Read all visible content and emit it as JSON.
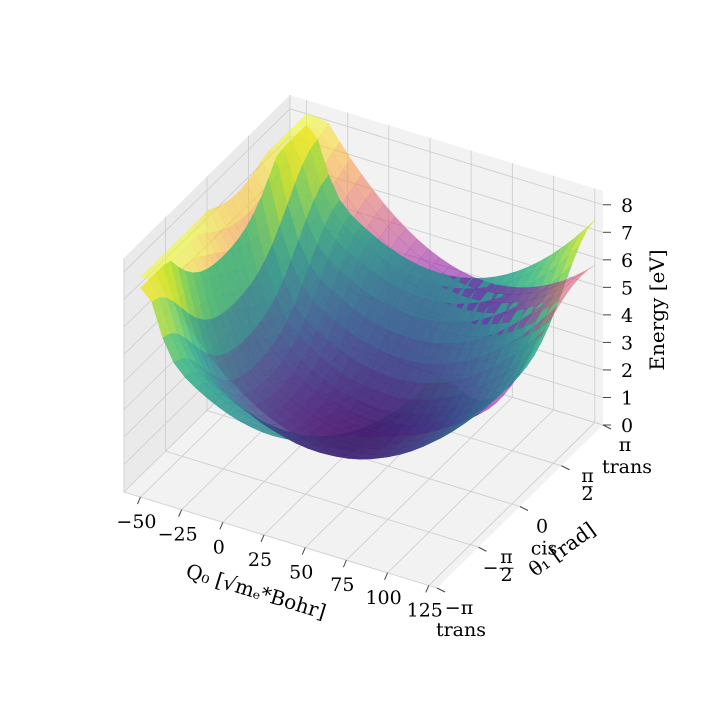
{
  "chart_data": {
    "type": "surface3d",
    "xlabel": "Q₀ [√mₑ*Bohr]",
    "ylabel": "θ₁ [rad]",
    "zlabel": "Energy [eV]",
    "xlim": [
      -60,
      130
    ],
    "ylim": [
      -3.1416,
      3.1416
    ],
    "zlim": [
      0,
      8.5
    ],
    "x_ticks": [
      "−50",
      "−25",
      "0",
      "25",
      "50",
      "75",
      "100",
      "125"
    ],
    "y_ticks": [
      {
        "value": "−π",
        "sub": "trans"
      },
      {
        "value": "−π/2",
        "sub": ""
      },
      {
        "value": "0",
        "sub": "cis"
      },
      {
        "value": "π/2",
        "sub": ""
      },
      {
        "value": "π",
        "sub": "trans"
      }
    ],
    "z_ticks": [
      "0",
      "1",
      "2",
      "3",
      "4",
      "5",
      "6",
      "7",
      "8"
    ],
    "grid": true,
    "series": [
      {
        "colormap": "viridis",
        "x_range": [
          -50,
          125
        ],
        "y_range": [
          -3.1416,
          3.1416
        ],
        "z_range": [
          0.2,
          7.6
        ],
        "min_point": {
          "x": 30,
          "y": 0,
          "z": 0.2
        }
      },
      {
        "colormap": "plasma",
        "x_range": [
          -50,
          125
        ],
        "y_range": [
          -3.1416,
          3.1416
        ],
        "z_range": [
          2.5,
          8.0
        ],
        "min_point": {
          "x": 60,
          "y": 0,
          "z": 2.5
        }
      }
    ]
  }
}
